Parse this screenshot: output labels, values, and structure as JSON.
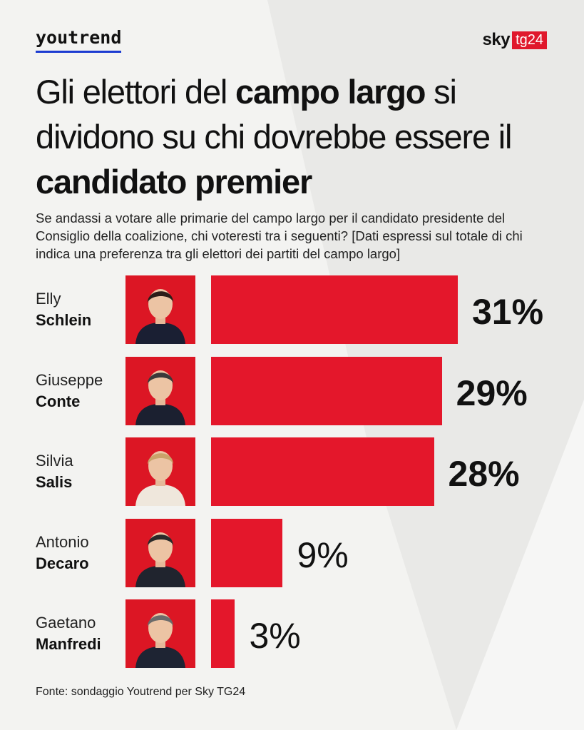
{
  "brand": {
    "youtrend_logo": "youtrend",
    "sky_logo_word": "sky",
    "tg24_badge": "tg24",
    "accent_red": "#e4172b",
    "accent_blue": "#1b3bd1"
  },
  "headline": {
    "part1": "Gli elettori del ",
    "part1_bold": "campo largo",
    "part2": " si dividono su chi dovrebbe essere il ",
    "part2_bold": "candidato premier"
  },
  "subtitle": "Se andassi a votare alle primarie del campo largo per il candidato presidente del Consiglio della coalizione, chi voteresti tra i seguenti? [Dati espressi sul totale di chi indica una preferenza tra gli elettori dei partiti del campo largo]",
  "source": "Fonte: sondaggio Youtrend per Sky TG24",
  "chart_data": {
    "type": "bar",
    "orientation": "horizontal",
    "title": "Gli elettori del campo largo si dividono su chi dovrebbe essere il candidato premier",
    "xlabel": "",
    "ylabel": "",
    "xlim": [
      0,
      31
    ],
    "grid": false,
    "categories": [
      "Elly Schlein",
      "Giuseppe Conte",
      "Silvia Salis",
      "Antonio Decaro",
      "Gaetano Manfredi"
    ],
    "values": [
      31,
      29,
      28,
      9,
      3
    ],
    "unit": "%",
    "candidates": [
      {
        "first": "Elly",
        "last": "Schlein",
        "value": 31,
        "label": "31%"
      },
      {
        "first": "Giuseppe",
        "last": "Conte",
        "value": 29,
        "label": "29%"
      },
      {
        "first": "Silvia",
        "last": "Salis",
        "value": 28,
        "label": "28%"
      },
      {
        "first": "Antonio",
        "last": "Decaro",
        "value": 9,
        "label": "9%"
      },
      {
        "first": "Gaetano",
        "last": "Manfredi",
        "value": 3,
        "label": "3%"
      }
    ]
  }
}
